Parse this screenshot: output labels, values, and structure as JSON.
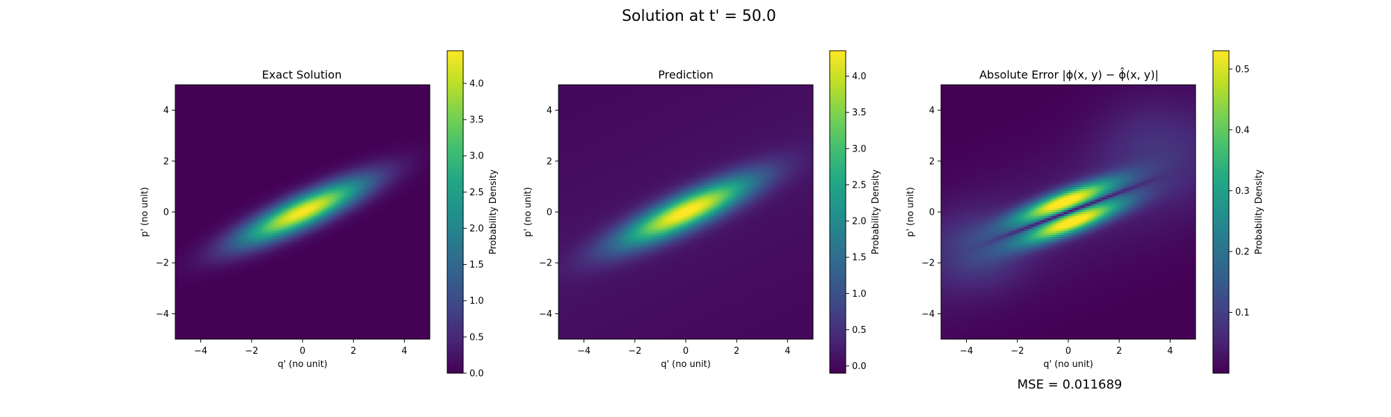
{
  "figure": {
    "suptitle": "Solution at t' = 50.0",
    "footer": "MSE = 0.011689"
  },
  "chart_data": [
    {
      "type": "heatmap",
      "title": "Exact Solution",
      "xlabel": "q' (no unit)",
      "ylabel": "p' (no unit)",
      "xlim": [
        -5,
        5
      ],
      "ylim": [
        -5,
        5
      ],
      "xticks": [
        -4,
        -2,
        0,
        2,
        4
      ],
      "yticks": [
        -4,
        -2,
        0,
        2,
        4
      ],
      "colormap": "viridis",
      "colorbar": {
        "label": "Probability Density",
        "range": [
          0.0,
          4.45
        ],
        "ticks": [
          "0.0",
          "0.5",
          "1.0",
          "1.5",
          "2.0",
          "2.5",
          "3.0",
          "3.5",
          "4.0"
        ]
      },
      "field": {
        "shape": "tilted gaussian",
        "center": [
          0,
          0
        ],
        "peak": 4.45,
        "major_axis_angle_deg": 25,
        "sigma_major": 1.9,
        "sigma_minor": 0.42
      }
    },
    {
      "type": "heatmap",
      "title": "Prediction",
      "xlabel": "q' (no unit)",
      "ylabel": "p' (no unit)",
      "xlim": [
        -5,
        5
      ],
      "ylim": [
        -5,
        5
      ],
      "xticks": [
        -4,
        -2,
        0,
        2,
        4
      ],
      "yticks": [
        -4,
        -2,
        0,
        2,
        4
      ],
      "colormap": "viridis",
      "colorbar": {
        "label": "Probability Density",
        "range": [
          -0.1,
          4.35
        ],
        "ticks": [
          "0.0",
          "0.5",
          "1.0",
          "1.5",
          "2.0",
          "2.5",
          "3.0",
          "3.5",
          "4.0"
        ]
      },
      "field": {
        "shape": "tilted gaussian",
        "center": [
          0,
          0
        ],
        "peak": 4.35,
        "major_axis_angle_deg": 25,
        "sigma_major": 2.0,
        "sigma_minor": 0.45
      }
    },
    {
      "type": "heatmap",
      "title": "Absolute Error |ϕ(x, y) − ϕ̂(x, y)|",
      "xlabel": "q' (no unit)",
      "ylabel": "p' (no unit)",
      "xlim": [
        -5,
        5
      ],
      "ylim": [
        -5,
        5
      ],
      "xticks": [
        -4,
        -2,
        0,
        2,
        4
      ],
      "yticks": [
        -4,
        -2,
        0,
        2,
        4
      ],
      "colormap": "viridis",
      "colorbar": {
        "label": "Probability Density",
        "range": [
          0.0,
          0.53
        ],
        "ticks": [
          "0.1",
          "0.2",
          "0.3",
          "0.4",
          "0.5"
        ]
      },
      "field": {
        "shape": "two lobes split by a tilted zero line",
        "center": [
          0,
          0
        ],
        "peak": 0.53,
        "major_axis_angle_deg": 22,
        "sigma_major": 1.5,
        "sigma_minor": 0.55
      }
    }
  ]
}
